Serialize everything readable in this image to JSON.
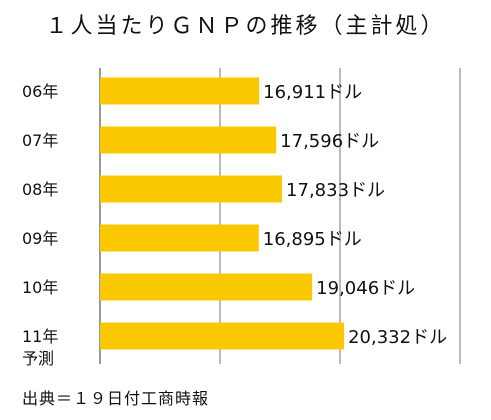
{
  "title": "１人当たりＧＮＰの推移（主計処）",
  "source": "出典＝１９日付工商時報",
  "colors": {
    "bar": "#F9C800",
    "grid": "#555555",
    "text": "#111111"
  },
  "chart_data": {
    "type": "bar",
    "orientation": "horizontal",
    "title": "１人当たりＧＮＰの推移（主計処）",
    "unit": "ドル",
    "categories": [
      "06年",
      "07年",
      "08年",
      "09年",
      "10年",
      "11年\n予測"
    ],
    "values": [
      16911,
      17596,
      17833,
      16895,
      19046,
      20332
    ],
    "value_labels": [
      "16,911ドル",
      "17,596ドル",
      "17,833ドル",
      "16,895ドル",
      "19,046ドル",
      "20,332ドル"
    ],
    "xlim": [
      10500,
      25000
    ],
    "grid": true
  }
}
